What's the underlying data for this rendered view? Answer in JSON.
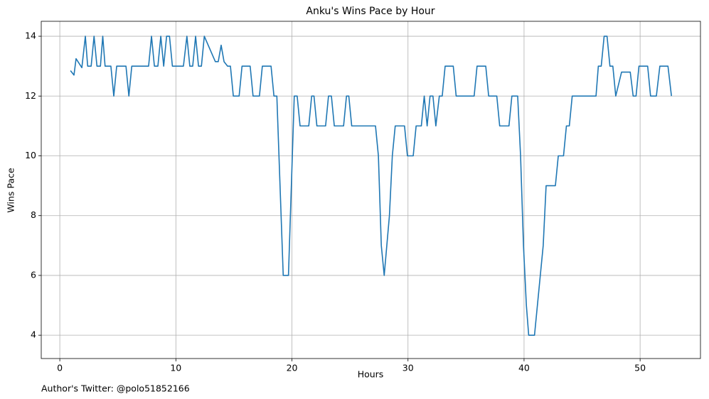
{
  "chart_data": {
    "type": "line",
    "title": "Anku's Wins Pace by Hour",
    "xlabel": "Hours",
    "ylabel": "Wins Pace",
    "annotation": "Author's Twitter: @polo51852166",
    "color": "#1f77b4",
    "grid": true,
    "xlim": [
      -1.6,
      55.2
    ],
    "ylim": [
      3.22,
      14.5
    ],
    "xticks": [
      0,
      10,
      20,
      30,
      40,
      50
    ],
    "yticks": [
      4,
      6,
      8,
      10,
      12,
      14
    ],
    "x": [
      0.92,
      1.22,
      1.4,
      1.9,
      2.2,
      2.4,
      2.7,
      2.95,
      3.2,
      3.5,
      3.7,
      3.9,
      4.4,
      4.65,
      4.9,
      5.7,
      5.95,
      6.2,
      7.65,
      7.9,
      8.15,
      8.45,
      8.7,
      8.95,
      9.2,
      9.45,
      9.7,
      10.65,
      10.95,
      11.2,
      11.45,
      11.7,
      11.95,
      12.2,
      12.45,
      13.4,
      13.65,
      13.9,
      14.15,
      14.45,
      14.7,
      14.95,
      15.45,
      15.7,
      16.4,
      16.65,
      17.2,
      17.45,
      18.2,
      18.45,
      18.7,
      19.25,
      19.7,
      20.2,
      20.45,
      20.7,
      21.45,
      21.7,
      21.9,
      22.15,
      22.9,
      23.15,
      23.4,
      23.65,
      24.45,
      24.7,
      24.9,
      25.15,
      27.2,
      27.45,
      27.7,
      27.95,
      28.4,
      28.65,
      28.9,
      29.7,
      29.95,
      30.45,
      30.7,
      31.15,
      31.4,
      31.65,
      31.9,
      32.15,
      32.4,
      32.7,
      32.95,
      33.2,
      33.9,
      34.15,
      35.7,
      35.95,
      36.7,
      36.95,
      37.65,
      37.9,
      38.7,
      38.95,
      39.45,
      39.7,
      39.95,
      40.2,
      40.4,
      40.9,
      41.15,
      41.65,
      41.9,
      42.7,
      42.95,
      43.4,
      43.65,
      43.9,
      44.15,
      46.2,
      46.4,
      46.65,
      46.9,
      47.15,
      47.4,
      47.65,
      47.9,
      48.4,
      49.15,
      49.4,
      49.65,
      49.9,
      50.65,
      50.9,
      51.4,
      51.7,
      52.4,
      52.7
    ],
    "values": [
      12.85,
      12.7,
      13.25,
      12.95,
      14,
      13,
      13,
      14,
      13,
      13,
      14,
      13,
      13,
      12,
      13,
      13,
      12,
      13,
      13,
      14,
      13,
      13,
      14,
      13,
      14,
      14,
      13,
      13,
      14,
      13,
      13,
      14,
      13,
      13,
      14,
      13.15,
      13.15,
      13.7,
      13.15,
      13,
      13,
      12,
      12,
      13,
      13,
      12,
      12,
      13,
      13,
      12,
      12,
      6,
      6,
      12,
      12,
      11,
      11,
      12,
      12,
      11,
      11,
      12,
      12,
      11,
      11,
      12,
      12,
      11,
      11,
      10,
      7,
      6,
      8,
      10,
      11,
      11,
      10,
      10,
      11,
      11,
      12,
      11,
      12,
      12,
      11,
      12,
      12,
      13,
      13,
      12,
      12,
      13,
      13,
      12,
      12,
      11,
      11,
      12,
      12,
      10,
      7,
      5,
      4,
      4,
      5,
      7,
      9,
      9,
      10,
      10,
      11,
      11,
      12,
      12,
      13,
      13,
      14,
      14,
      13,
      13,
      12,
      12.8,
      12.8,
      12,
      12,
      13,
      13,
      12,
      12,
      13,
      13,
      12
    ]
  }
}
